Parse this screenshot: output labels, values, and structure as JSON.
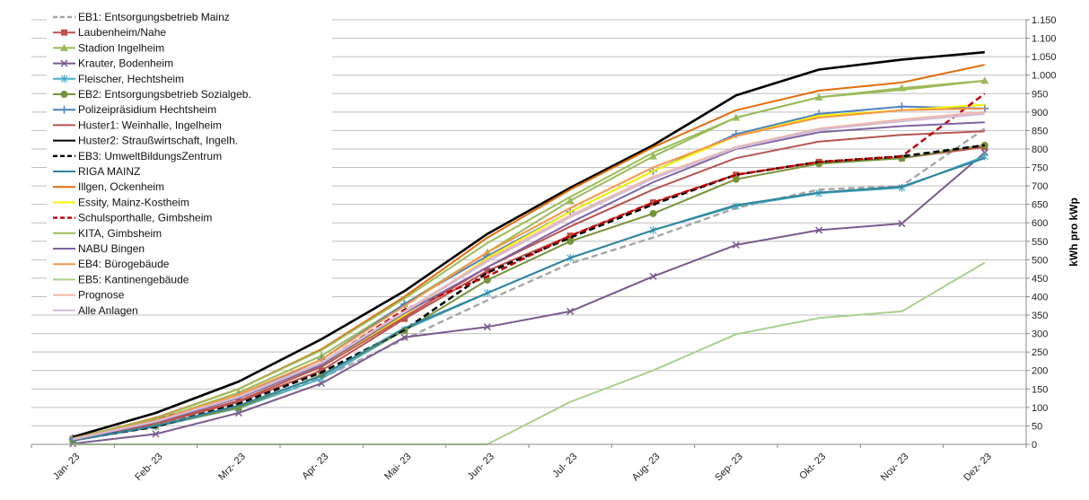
{
  "chart_data": {
    "type": "line",
    "title": "",
    "xlabel": "",
    "ylabel": "kWh pro kWp",
    "ylim": [
      0,
      1150
    ],
    "ytick_step": 50,
    "y_axis_side": "right",
    "grid": true,
    "legend_position": "top-left",
    "categories": [
      "Jan- 23",
      "Feb- 23",
      "Mrz- 23",
      "Apr- 23",
      "Mai- 23",
      "Jun- 23",
      "Jul- 23",
      "Aug- 23",
      "Sep- 23",
      "Okt- 23",
      "Nov- 23",
      "Dez- 23"
    ],
    "series": [
      {
        "name": "EB1: Entsorgungsbetrieb Mainz",
        "color": "#a6a6a6",
        "dash": "dash",
        "marker": "none",
        "values": [
          10,
          50,
          105,
          180,
          285,
          390,
          490,
          560,
          640,
          690,
          700,
          855
        ]
      },
      {
        "name": "Laubenheim/Nahe",
        "color": "#c0504d",
        "dash": "solid",
        "marker": "square",
        "values": [
          15,
          55,
          115,
          200,
          340,
          470,
          565,
          655,
          730,
          765,
          775,
          805
        ]
      },
      {
        "name": "Stadion Ingelheim",
        "color": "#9bbb59",
        "dash": "solid",
        "marker": "triangle",
        "values": [
          18,
          65,
          140,
          240,
          380,
          520,
          660,
          780,
          885,
          940,
          965,
          985
        ]
      },
      {
        "name": "Krauter, Bodenheim",
        "color": "#7a5a8e",
        "dash": "solid",
        "marker": "x",
        "values": [
          2,
          28,
          85,
          165,
          290,
          318,
          360,
          455,
          540,
          580,
          598,
          790
        ]
      },
      {
        "name": "Fleischer, Hechtsheim",
        "color": "#4bacc6",
        "dash": "solid",
        "marker": "star",
        "values": [
          10,
          48,
          98,
          178,
          310,
          410,
          505,
          580,
          645,
          680,
          695,
          780
        ]
      },
      {
        "name": "EB2: Entsorgungsbetrieb Sozialgeb.",
        "color": "#77933c",
        "dash": "solid",
        "marker": "circle",
        "values": [
          10,
          50,
          100,
          188,
          308,
          445,
          550,
          625,
          718,
          760,
          775,
          810
        ]
      },
      {
        "name": "Polizeipräsidium Hechtsheim",
        "color": "#4f81bd",
        "dash": "solid",
        "marker": "plus",
        "values": [
          15,
          65,
          130,
          230,
          380,
          510,
          630,
          740,
          840,
          895,
          915,
          910
        ]
      },
      {
        "name": "Huster1: Weinhalle, Ingelheim",
        "color": "#b85450",
        "dash": "solid",
        "marker": "none",
        "values": [
          12,
          58,
          118,
          210,
          345,
          480,
          590,
          690,
          775,
          820,
          838,
          848
        ]
      },
      {
        "name": "Huster2: Straußwirtschaft, Ingelh.",
        "color": "#000000",
        "dash": "solid",
        "marker": "none",
        "values": [
          20,
          85,
          170,
          285,
          415,
          570,
          695,
          810,
          945,
          1015,
          1042,
          1062
        ]
      },
      {
        "name": "EB3: UmweltBildungsZentrum",
        "color": "#000000",
        "dash": "dash",
        "marker": "none",
        "values": [
          12,
          48,
          110,
          195,
          310,
          465,
          560,
          650,
          730,
          765,
          780,
          810
        ]
      },
      {
        "name": "RIGA MAINZ",
        "color": "#31859c",
        "dash": "solid",
        "marker": "none",
        "values": [
          10,
          50,
          105,
          185,
          315,
          410,
          505,
          580,
          648,
          682,
          698,
          775
        ]
      },
      {
        "name": "Illgen, Ockenheim",
        "color": "#e46c0a",
        "dash": "solid",
        "marker": "none",
        "values": [
          15,
          72,
          150,
          258,
          400,
          560,
          690,
          805,
          905,
          958,
          980,
          1028
        ]
      },
      {
        "name": "Essity, Mainz-Kostheim",
        "color": "#f5f500",
        "dash": "solid",
        "marker": "none",
        "values": [
          14,
          62,
          125,
          215,
          350,
          505,
          630,
          740,
          835,
          890,
          905,
          920
        ]
      },
      {
        "name": "Schulsporthalle, Gimbsheim",
        "color": "#c00000",
        "dash": "dash",
        "marker": "none",
        "values": [
          16,
          68,
          125,
          220,
          365,
          455,
          565,
          655,
          730,
          765,
          780,
          950
        ]
      },
      {
        "name": "KITA, Gimbsheim",
        "color": "#9bbb59",
        "dash": "solid",
        "marker": "none",
        "values": [
          16,
          70,
          150,
          255,
          395,
          545,
          670,
          790,
          885,
          940,
          960,
          985
        ]
      },
      {
        "name": "NABU Bingen",
        "color": "#8064a2",
        "dash": "solid",
        "marker": "none",
        "values": [
          12,
          60,
          125,
          215,
          355,
          480,
          600,
          710,
          800,
          845,
          862,
          872
        ]
      },
      {
        "name": "EB4: Bürogebäude",
        "color": "#f79646",
        "dash": "solid",
        "marker": "none",
        "values": [
          15,
          65,
          135,
          230,
          375,
          520,
          640,
          750,
          835,
          885,
          905,
          910
        ]
      },
      {
        "name": "EB5: Kantinengebäude",
        "color": "#a9d18e",
        "dash": "solid",
        "marker": "none",
        "values": [
          0,
          0,
          0,
          0,
          0,
          0,
          115,
          200,
          298,
          342,
          360,
          492
        ]
      },
      {
        "name": "Prognose",
        "color": "#f4b6a6",
        "dash": "solid",
        "marker": "none",
        "values": [
          13,
          62,
          130,
          222,
          360,
          500,
          620,
          725,
          805,
          855,
          880,
          900
        ]
      },
      {
        "name": "Alle Anlagen",
        "color": "#d0bcd8",
        "dash": "solid",
        "marker": "none",
        "values": [
          14,
          62,
          128,
          220,
          358,
          495,
          615,
          720,
          802,
          852,
          875,
          895
        ]
      }
    ]
  }
}
